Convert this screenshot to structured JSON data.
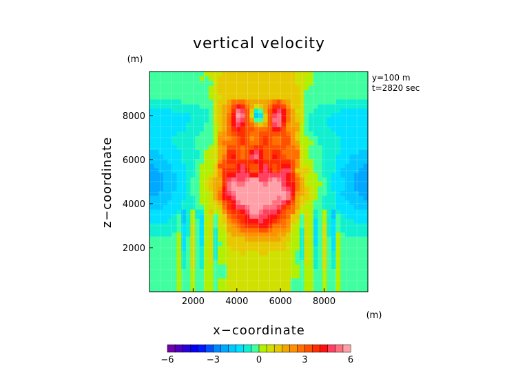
{
  "chart_data": {
    "type": "heatmap",
    "title": "vertical velocity",
    "xlabel": "x−coordinate",
    "ylabel": "z−coordinate",
    "x_unit": "(m)",
    "y_unit": "(m)",
    "annotation_lines": [
      "y=100 m",
      "t=2820 sec"
    ],
    "xlim": [
      0,
      10000
    ],
    "ylim": [
      0,
      10000
    ],
    "x_ticks": [
      {
        "value": 2000,
        "label": "2000"
      },
      {
        "value": 4000,
        "label": "4000"
      },
      {
        "value": 6000,
        "label": "6000"
      },
      {
        "value": 8000,
        "label": "8000"
      }
    ],
    "y_ticks": [
      {
        "value": 2000,
        "label": "2000"
      },
      {
        "value": 4000,
        "label": "4000"
      },
      {
        "value": 6000,
        "label": "6000"
      },
      {
        "value": 8000,
        "label": "8000"
      }
    ],
    "grid": true,
    "colorbar": {
      "min": -6,
      "max": 6,
      "step": 0.5,
      "tick_labels": [
        {
          "value": -6,
          "label": "−6"
        },
        {
          "value": -3,
          "label": "−3"
        },
        {
          "value": 0,
          "label": "0"
        },
        {
          "value": 3,
          "label": "3"
        },
        {
          "value": 6,
          "label": "6"
        }
      ],
      "colors": [
        "#7000a8",
        "#4b00c0",
        "#2800d8",
        "#0000f0",
        "#0018ff",
        "#0050ff",
        "#0088ff",
        "#00a8ff",
        "#00c8ff",
        "#00e0ff",
        "#10f0d0",
        "#40ffa0",
        "#b0f000",
        "#d0e000",
        "#e8c800",
        "#f0a800",
        "#ff9000",
        "#ff7000",
        "#ff5000",
        "#ff3000",
        "#ff1010",
        "#ff4060",
        "#ff7080",
        "#ffa0a8"
      ]
    }
  }
}
